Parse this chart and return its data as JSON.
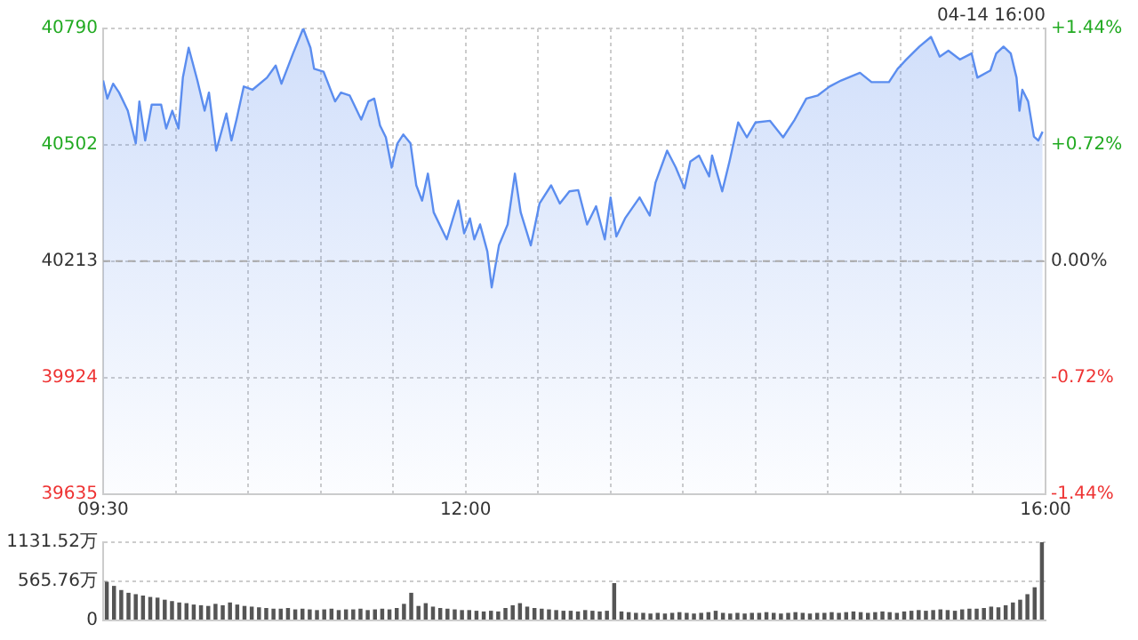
{
  "chart_data": [
    {
      "type": "area",
      "annotations": [
        "04-14 16:00"
      ],
      "x": [
        9.5,
        9.529,
        9.569,
        9.61,
        9.67,
        9.725,
        9.75,
        9.79,
        9.835,
        9.9,
        9.935,
        9.977,
        10.02,
        10.05,
        10.09,
        10.15,
        10.2,
        10.23,
        10.28,
        10.35,
        10.385,
        10.42,
        10.47,
        10.53,
        10.63,
        10.69,
        10.73,
        10.81,
        10.88,
        10.93,
        10.955,
        11.02,
        11.1,
        11.14,
        11.2,
        11.28,
        11.33,
        11.37,
        11.41,
        11.45,
        11.49,
        11.53,
        11.57,
        11.62,
        11.66,
        11.7,
        11.74,
        11.78,
        11.87,
        11.95,
        11.99,
        12.03,
        12.06,
        12.1,
        12.15,
        12.18,
        12.23,
        12.29,
        12.34,
        12.38,
        12.45,
        12.51,
        12.59,
        12.65,
        12.716,
        12.777,
        12.838,
        12.9,
        12.96,
        13.0,
        13.04,
        13.1,
        13.2,
        13.27,
        13.31,
        13.39,
        13.45,
        13.51,
        13.55,
        13.61,
        13.68,
        13.7,
        13.77,
        13.82,
        13.88,
        13.94,
        14.0,
        14.1,
        14.19,
        14.27,
        14.35,
        14.43,
        14.51,
        14.59,
        14.72,
        14.8,
        14.92,
        14.98,
        15.04,
        15.13,
        15.21,
        15.27,
        15.33,
        15.41,
        15.49,
        15.53,
        15.62,
        15.66,
        15.71,
        15.76,
        15.8,
        15.82,
        15.84,
        15.88,
        15.92,
        15.95,
        15.98
      ],
      "series": [
        {
          "color": "#5b8def",
          "values": [
            40661,
            40616,
            40653,
            40631,
            40586,
            40505,
            40609,
            40512,
            40601,
            40601,
            40542,
            40586,
            40542,
            40668,
            40742,
            40661,
            40586,
            40631,
            40487,
            40579,
            40512,
            40564,
            40646,
            40638,
            40668,
            40698,
            40653,
            40728,
            40790,
            40742,
            40690,
            40683,
            40609,
            40631,
            40624,
            40564,
            40609,
            40616,
            40549,
            40520,
            40445,
            40505,
            40527,
            40505,
            40401,
            40363,
            40430,
            40334,
            40267,
            40363,
            40282,
            40319,
            40267,
            40304,
            40237,
            40148,
            40252,
            40304,
            40430,
            40334,
            40252,
            40356,
            40401,
            40356,
            40386,
            40389,
            40304,
            40349,
            40267,
            40371,
            40274,
            40319,
            40371,
            40326,
            40408,
            40487,
            40445,
            40393,
            40460,
            40475,
            40423,
            40475,
            40386,
            40460,
            40557,
            40520,
            40557,
            40561,
            40520,
            40564,
            40616,
            40624,
            40646,
            40661,
            40680,
            40657,
            40657,
            40690,
            40713,
            40745,
            40769,
            40720,
            40735,
            40713,
            40728,
            40668,
            40686,
            40728,
            40745,
            40728,
            40668,
            40586,
            40638,
            40609,
            40522,
            40512,
            40534
          ]
        }
      ],
      "xlim": [
        9.5,
        16
      ],
      "xticks": [
        {
          "value": 9.5,
          "label": "09:30"
        },
        {
          "value": 10,
          "label": null
        },
        {
          "value": 10.5,
          "label": null
        },
        {
          "value": 11,
          "label": null
        },
        {
          "value": 11.5,
          "label": null
        },
        {
          "value": 12,
          "label": "12:00"
        },
        {
          "value": 12.5,
          "label": null
        },
        {
          "value": 13,
          "label": null
        },
        {
          "value": 13.5,
          "label": null
        },
        {
          "value": 14,
          "label": null
        },
        {
          "value": 14.5,
          "label": null
        },
        {
          "value": 15,
          "label": null
        },
        {
          "value": 15.5,
          "label": null
        },
        {
          "value": 16,
          "label": "16:00"
        }
      ],
      "ylim": [
        39635,
        40790
      ],
      "yticks": [
        39635,
        39924,
        40213,
        40502,
        40790
      ],
      "y2lim": [
        -1.44,
        1.44
      ],
      "y2ticks": [
        {
          "value": -1.44,
          "label": "-1.44%"
        },
        {
          "value": -0.72,
          "label": "-0.72%"
        },
        {
          "value": 0,
          "label": "0.00%"
        },
        {
          "value": 0.72,
          "label": "+0.72%"
        },
        {
          "value": 1.44,
          "label": "+1.44%"
        }
      ],
      "ref_lines": [
        {
          "axis": "y",
          "value": 40213,
          "color": "#aaaaaa",
          "line_style": "dashed"
        }
      ],
      "grid": true,
      "legend": false
    },
    {
      "type": "bar",
      "categories": [
        null,
        null,
        null,
        null,
        null,
        null,
        null,
        null,
        null,
        null,
        null,
        null,
        null,
        null,
        null,
        null,
        null,
        null,
        null,
        null,
        null,
        null,
        null,
        null,
        null,
        null,
        null,
        null,
        null,
        null,
        null,
        null,
        null,
        null,
        null,
        null,
        null,
        null,
        null,
        null,
        null,
        null,
        null,
        null,
        null,
        null,
        null,
        null,
        null,
        null,
        null,
        null,
        null,
        null,
        null,
        null,
        null,
        null,
        null,
        null,
        null,
        null,
        null,
        null,
        null,
        null,
        null,
        null,
        null,
        null,
        null,
        null,
        null,
        null,
        null,
        null,
        null,
        null,
        null,
        null,
        null,
        null,
        null,
        null,
        null,
        null,
        null,
        null,
        null,
        null,
        null,
        null,
        null,
        null,
        null,
        null,
        null,
        null,
        null,
        null,
        null,
        null,
        null,
        null,
        null,
        null,
        null,
        null,
        null,
        null,
        null,
        null,
        null,
        null,
        null,
        null,
        null,
        null,
        null,
        null,
        null,
        null,
        null,
        null,
        null,
        null,
        null,
        null,
        null,
        null
      ],
      "series": [
        {
          "color": "#555555",
          "values": [
            560,
            500,
            440,
            400,
            380,
            360,
            340,
            330,
            300,
            280,
            260,
            250,
            230,
            220,
            210,
            240,
            220,
            260,
            230,
            210,
            200,
            190,
            180,
            170,
            170,
            180,
            160,
            170,
            160,
            150,
            160,
            170,
            150,
            160,
            160,
            170,
            150,
            160,
            170,
            160,
            180,
            240,
            400,
            210,
            250,
            200,
            180,
            170,
            160,
            150,
            150,
            140,
            130,
            140,
            130,
            180,
            220,
            250,
            200,
            180,
            170,
            160,
            150,
            140,
            140,
            130,
            150,
            140,
            130,
            140,
            540,
            130,
            120,
            110,
            110,
            100,
            110,
            100,
            110,
            120,
            110,
            100,
            110,
            120,
            140,
            110,
            100,
            110,
            100,
            110,
            110,
            120,
            110,
            100,
            110,
            120,
            110,
            100,
            110,
            110,
            120,
            110,
            120,
            130,
            120,
            110,
            120,
            130,
            120,
            110,
            130,
            140,
            150,
            140,
            150,
            160,
            150,
            140,
            160,
            170,
            170,
            180,
            200,
            190,
            220,
            260,
            300,
            380,
            480,
            1131.52
          ]
        }
      ],
      "ylim": [
        0,
        1131.52
      ],
      "yticks": [
        0,
        {
          "value": 565.76,
          "label": "565.76万"
        },
        {
          "value": 1131.52,
          "label": "1131.52万"
        }
      ],
      "grid": "y",
      "legend": false,
      "tick_labels": "y"
    }
  ]
}
